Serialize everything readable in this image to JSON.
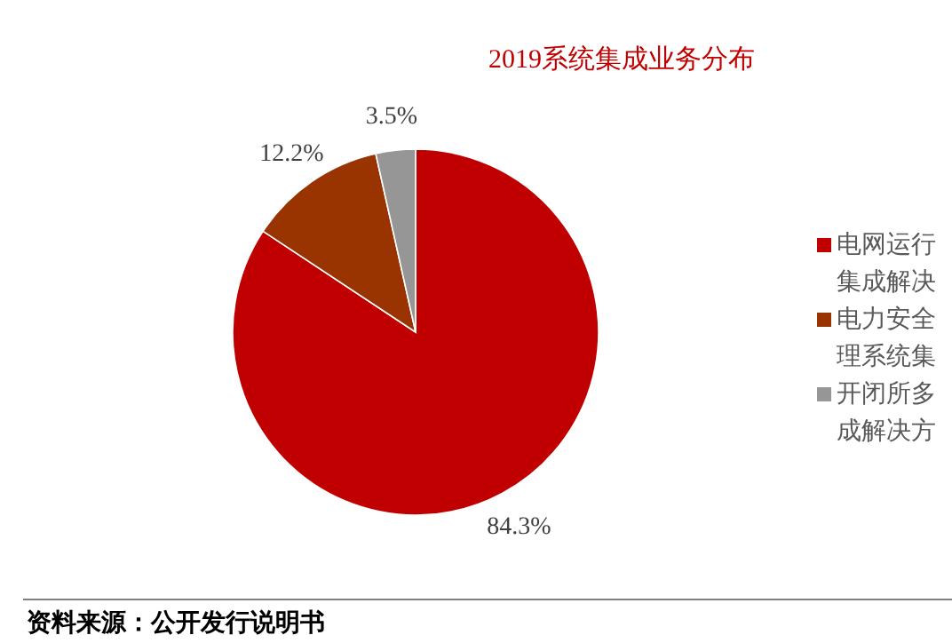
{
  "chart_data": {
    "type": "pie",
    "title": "2019系统集成业务分布",
    "categories": [
      "电网运行集成解决",
      "电力安全理系统集",
      "开闭所多成解决方"
    ],
    "values": [
      84.3,
      12.2,
      3.5
    ],
    "value_labels": [
      "84.3%",
      "12.2%",
      "3.5%"
    ],
    "colors": [
      "#c00000",
      "#993300",
      "#969696"
    ],
    "legend": "right",
    "annotations": [
      "资料来源：公开发行说明书"
    ]
  }
}
